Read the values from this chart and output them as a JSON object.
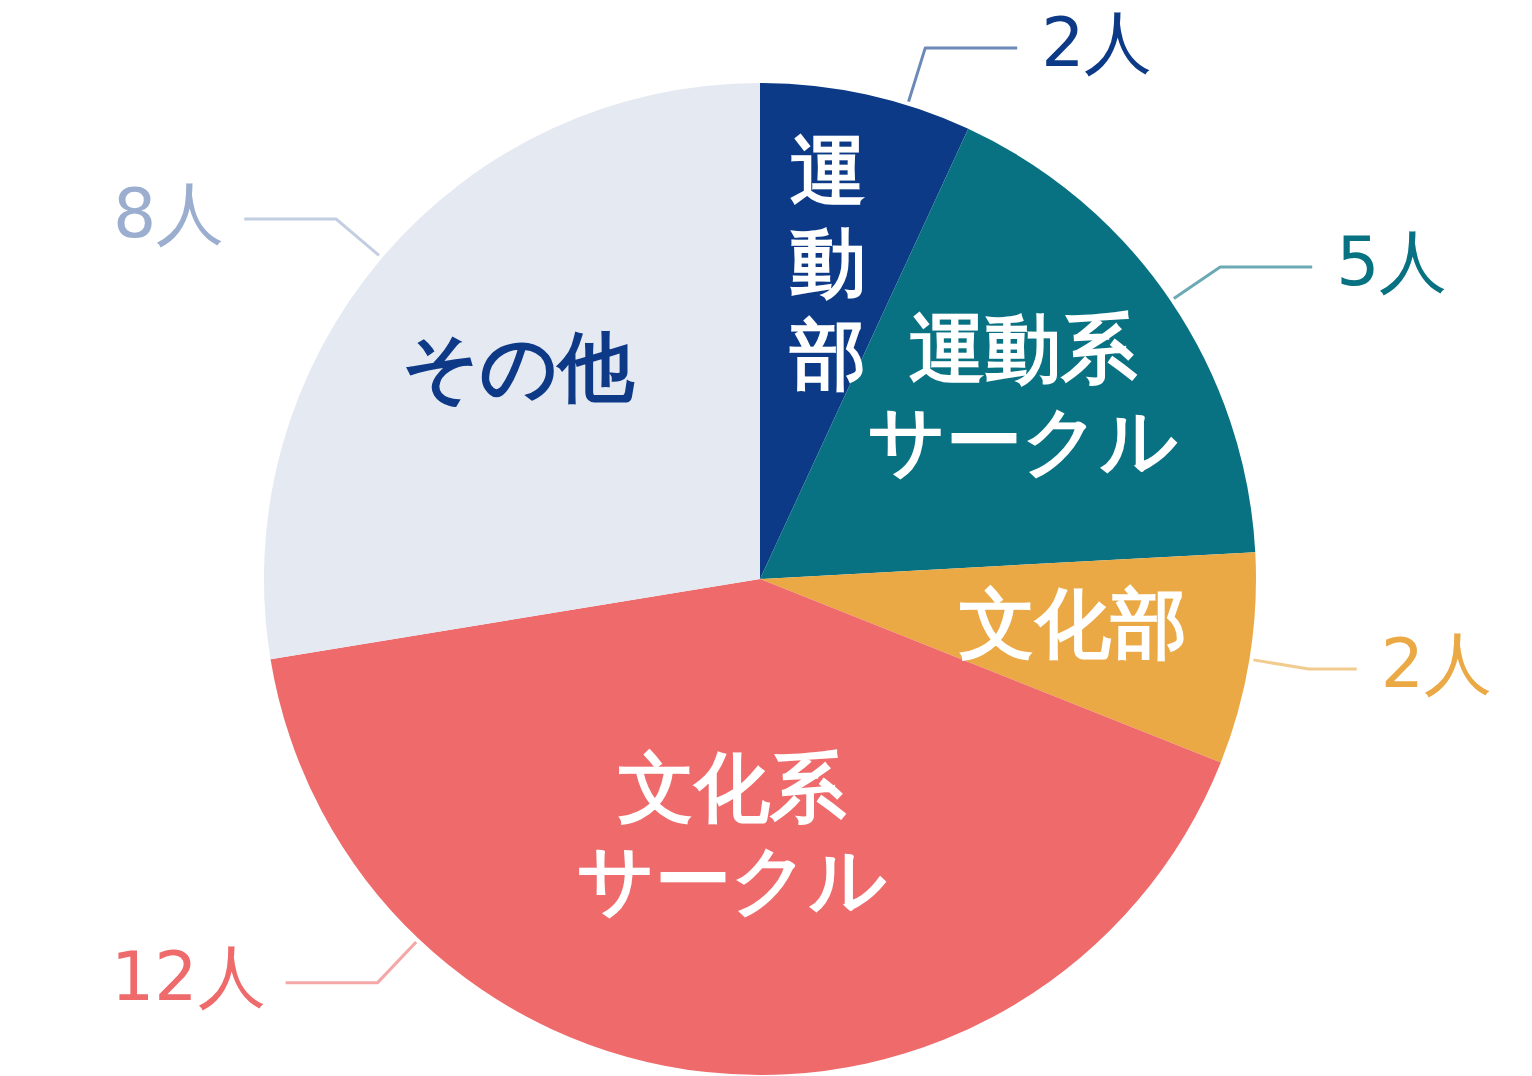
{
  "chart_data": {
    "type": "pie",
    "categories": [
      "運動部",
      "運動系サークル",
      "文化部",
      "文化系サークル",
      "その他"
    ],
    "values": [
      2,
      5,
      2,
      12,
      8
    ],
    "colors": [
      "#0c3a87",
      "#087182",
      "#eaa944",
      "#ee6a6b",
      "#e4e9f2"
    ],
    "value_labels": [
      "2人",
      "5人",
      "2人",
      "12人",
      "8人"
    ],
    "legend": false
  }
}
